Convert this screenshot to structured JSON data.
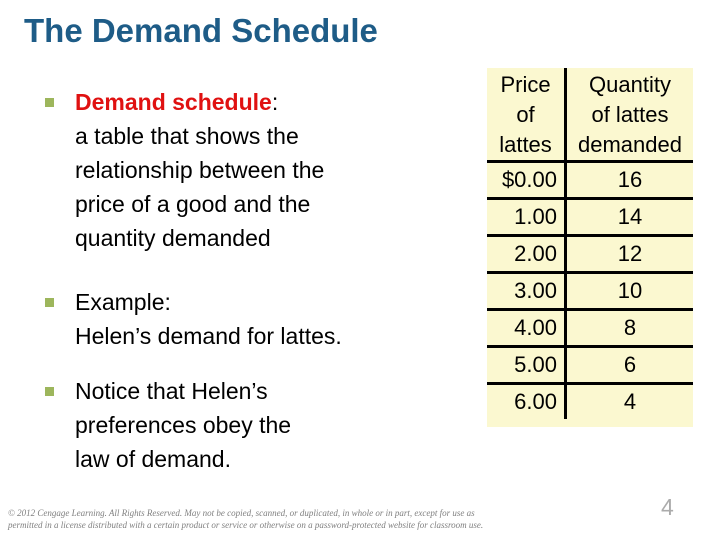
{
  "slide": {
    "title": "The Demand Schedule",
    "page_number": "4"
  },
  "bullets": [
    {
      "term": "Demand schedule",
      "term_suffix": ":",
      "lines": [
        "a table that shows the",
        "relationship between the",
        "price of a good and the",
        "quantity demanded"
      ]
    },
    {
      "lines": [
        "Example:",
        "Helen’s demand for lattes."
      ]
    },
    {
      "lines": [
        "Notice that Helen’s",
        "preferences obey the",
        "law of demand."
      ]
    }
  ],
  "table": {
    "headers": {
      "col1_lines": [
        "Price",
        "of",
        "lattes"
      ],
      "col2_lines": [
        "Quantity",
        "of lattes",
        "demanded"
      ]
    },
    "rows": [
      {
        "price": "$0.00",
        "quantity": "16"
      },
      {
        "price": "1.00",
        "quantity": "14"
      },
      {
        "price": "2.00",
        "quantity": "12"
      },
      {
        "price": "3.00",
        "quantity": "10"
      },
      {
        "price": "4.00",
        "quantity": "8"
      },
      {
        "price": "5.00",
        "quantity": "6"
      },
      {
        "price": "6.00",
        "quantity": "4"
      }
    ]
  },
  "footer": {
    "line1": "© 2012 Cengage Learning. All Rights Reserved. May not be copied, scanned, or duplicated, in whole or in part, except for use as",
    "line2": "permitted in a license distributed with a certain product or service or otherwise on a password-protected website for classroom use."
  },
  "colors": {
    "title": "#1e5c87",
    "term_red": "#e01111",
    "bullet_square": "#9db65c",
    "table_background": "#fbf8d0",
    "table_border": "#000000",
    "body_text": "#000000",
    "footer_text": "#808080",
    "page_number": "#ababab"
  }
}
